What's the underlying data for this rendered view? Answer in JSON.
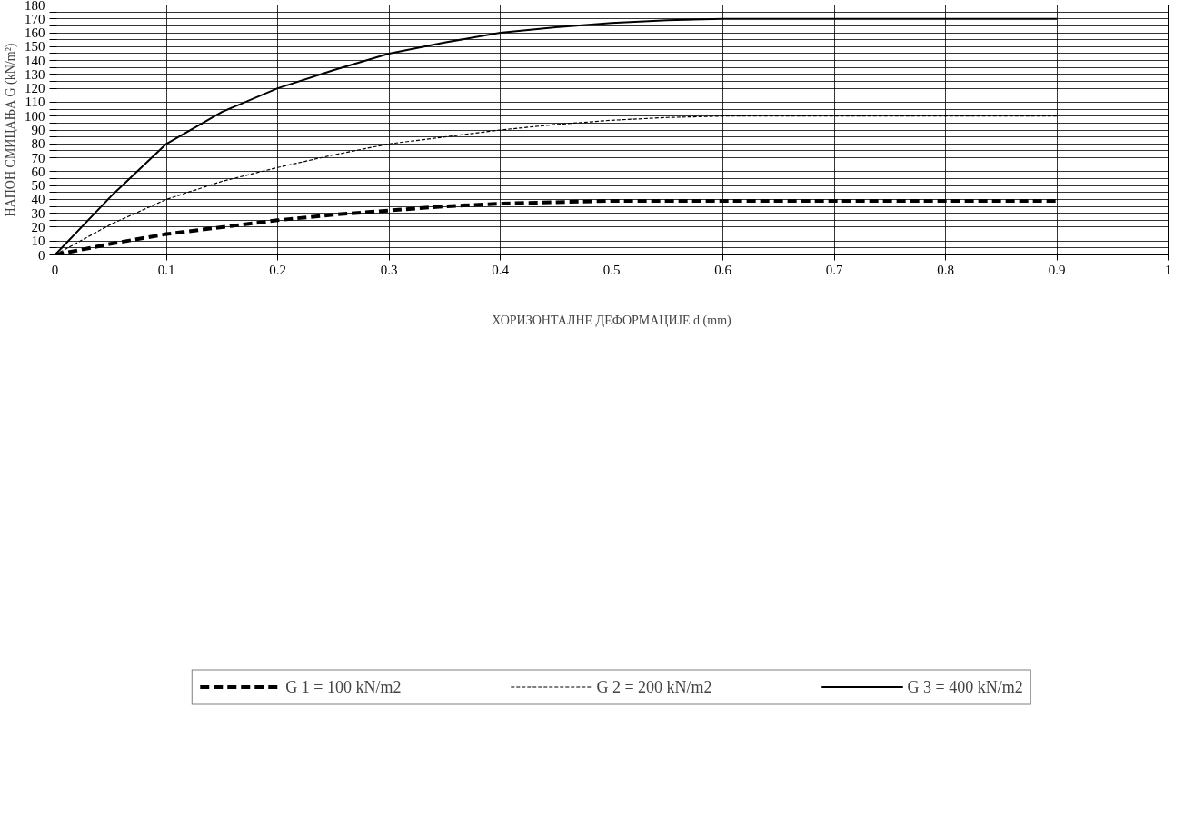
{
  "chart_data": {
    "type": "line",
    "xlabel": "ХОРИЗОНТАЛНЕ ДЕФОРМАЦИЈЕ d (mm)",
    "ylabel": "НАПОН СМИЦАЊА G (kN/m²)",
    "x": [
      0,
      0.05,
      0.1,
      0.15,
      0.2,
      0.25,
      0.3,
      0.35,
      0.4,
      0.45,
      0.5,
      0.55,
      0.6,
      0.7,
      0.8,
      0.9
    ],
    "series": [
      {
        "name": "G 1 = 100 kN/m2",
        "color": "#000000",
        "line_style": "dashed",
        "values": [
          0,
          8,
          15,
          20,
          25,
          29,
          32,
          35,
          37,
          38,
          39,
          39,
          39,
          39,
          39,
          39
        ]
      },
      {
        "name": "G 2 = 200 kN/m2",
        "color": "#000000",
        "line_style": "dotted",
        "values": [
          0,
          22,
          40,
          53,
          63,
          72,
          80,
          85,
          90,
          94,
          97,
          99,
          100,
          100,
          100,
          100
        ]
      },
      {
        "name": "G 3 = 400 kN/m2",
        "color": "#000000",
        "line_style": "solid",
        "values": [
          0,
          42,
          80,
          103,
          120,
          133,
          145,
          153,
          160,
          164,
          167,
          169,
          170,
          170,
          170,
          170
        ]
      }
    ],
    "xlim": [
      0,
      1
    ],
    "xticks": [
      0,
      0.1,
      0.2,
      0.3,
      0.4,
      0.5,
      0.6,
      0.7,
      0.8,
      0.9,
      1
    ],
    "ylim": [
      0,
      180
    ],
    "yticks": [
      0,
      {
        "value": 5,
        "label": null
      },
      10,
      {
        "value": 15,
        "label": null
      },
      20,
      {
        "value": 25,
        "label": null
      },
      30,
      {
        "value": 35,
        "label": null
      },
      40,
      {
        "value": 45,
        "label": null
      },
      50,
      {
        "value": 55,
        "label": null
      },
      60,
      {
        "value": 65,
        "label": null
      },
      70,
      {
        "value": 75,
        "label": null
      },
      80,
      {
        "value": 85,
        "label": null
      },
      90,
      {
        "value": 95,
        "label": null
      },
      100,
      {
        "value": 105,
        "label": null
      },
      110,
      {
        "value": 115,
        "label": null
      },
      120,
      {
        "value": 125,
        "label": null
      },
      130,
      {
        "value": 135,
        "label": null
      },
      140,
      {
        "value": 145,
        "label": null
      },
      150,
      {
        "value": 155,
        "label": null
      },
      160,
      {
        "value": 165,
        "label": null
      },
      170,
      {
        "value": 175,
        "label": null
      },
      180
    ],
    "grid": true,
    "legend": "bottom",
    "marker": "none"
  }
}
